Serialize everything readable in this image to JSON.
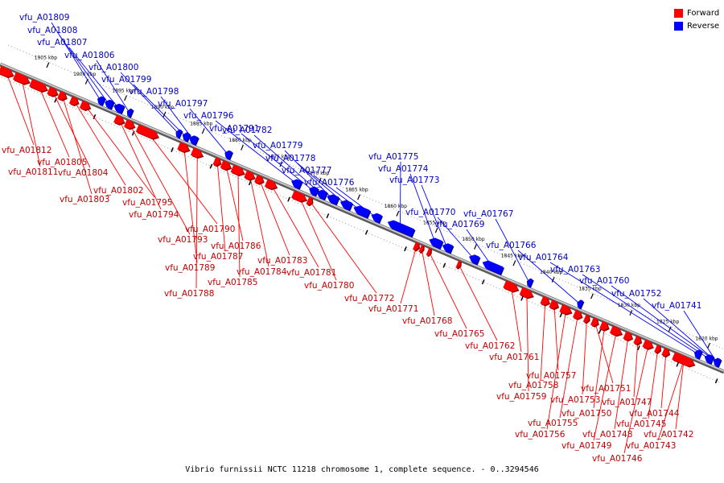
{
  "colors": {
    "forward": "#ff0000",
    "reverse": "#0000ff",
    "forward_label": "#c00000",
    "reverse_label": "#0000c0",
    "backbone": "#8a8a8a"
  },
  "legend": {
    "forward_label": "Forward",
    "reverse_label": "Reverse"
  },
  "caption": "Vibrio furnissii NCTC 11218 chromosome 1, complete sequence. - 0..3294546",
  "ticks": [
    "1905 kbp",
    "1900 kbp",
    "1895 kbp",
    "1890 kbp",
    "1885 kbp",
    "1880 kbp",
    "1875 kbp",
    "1870 kbp",
    "1865 kbp",
    "1860 kbp",
    "1855 kbp",
    "1850 kbp",
    "1845 kbp",
    "1840 kbp",
    "1835 kbp",
    "1830 kbp",
    "1825 kbp",
    "1820 kbp"
  ],
  "forward_genes": [
    "vfu_A01812",
    "vfu_A01811",
    "vfu_A01805",
    "vfu_A01804",
    "vfu_A01803",
    "vfu_A01802",
    "vfu_A01795",
    "vfu_A01794",
    "vfu_A01793",
    "vfu_A01790",
    "vfu_A01789",
    "vfu_A01788",
    "vfu_A01787",
    "vfu_A01786",
    "vfu_A01785",
    "vfu_A01784",
    "vfu_A01783",
    "vfu_A01781",
    "vfu_A01780",
    "vfu_A01772",
    "vfu_A01771",
    "vfu_A01768",
    "vfu_A01765",
    "vfu_A01762",
    "vfu_A01761",
    "vfu_A01759",
    "vfu_A01758",
    "vfu_A01757",
    "vfu_A01756",
    "vfu_A01755",
    "vfu_A01753",
    "vfu_A01751",
    "vfu_A01750",
    "vfu_A01749",
    "vfu_A01748",
    "vfu_A01747",
    "vfu_A01746",
    "vfu_A01745",
    "vfu_A01744",
    "vfu_A01743",
    "vfu_A01742"
  ],
  "reverse_genes": [
    "vfu_A01809",
    "vfu_A01808",
    "vfu_A01807",
    "vfu_A01806",
    "vfu_A01800",
    "vfu_A01799",
    "vfu_A01798",
    "vfu_A01797",
    "vfu_A01796",
    "vfu_A01791",
    "vfu_A01782",
    "vfu_A01779",
    "vfu_A01778",
    "vfu_A01777",
    "vfu_A01776",
    "vfu_A01775",
    "vfu_A01774",
    "vfu_A01773",
    "vfu_A01770",
    "vfu_A01769",
    "vfu_A01767",
    "vfu_A01766",
    "vfu_A01764",
    "vfu_A01763",
    "vfu_A01760",
    "vfu_A01752",
    "vfu_A01741"
  ]
}
